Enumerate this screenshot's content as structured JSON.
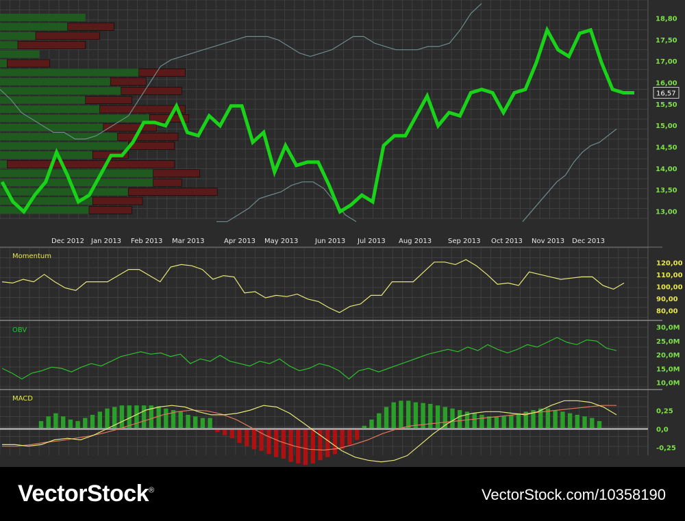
{
  "footer": {
    "brand": "VectorStock",
    "brand_mark": "®",
    "image_ref": "VectorStock.com/10358190"
  },
  "colors": {
    "background": "#2b2b2b",
    "grid": "#3f3f3f",
    "price_line": "#19d219",
    "band_line": "#6e8c8c",
    "price_axis": "#7ee04a",
    "momentum_line": "#e8e87a",
    "momentum_axis": "#e8e84a",
    "obv_line": "#2ec02e",
    "macd_pos": "#2aa02a",
    "macd_neg": "#b01010",
    "macd_line": "#e8e87a",
    "signal_line": "#e07a5a",
    "volume_up": "#1f5a1f",
    "volume_down": "#5a1a1a"
  },
  "chart_data": [
    {
      "type": "line",
      "panel": "price",
      "title": "",
      "x_labels": [
        "Dec 2012",
        "Jan 2013",
        "Feb 2013",
        "Mar 2013",
        "Apr 2013",
        "May 2013",
        "Jun 2013",
        "Jul 2013",
        "Aug 2013",
        "Sep 2013",
        "Oct 2013",
        "Nov 2013",
        "Dec 2013"
      ],
      "y_ticks": [
        "18,80",
        "17,50",
        "17,00",
        "16,00",
        "15,50",
        "15,00",
        "14,50",
        "14,00",
        "13,50",
        "13,00"
      ],
      "ylim": [
        12.8,
        19.1
      ],
      "current_value_label": "16,57",
      "series": [
        {
          "values": [
            13.8,
            13.2,
            12.9,
            13.4,
            13.8,
            14.7,
            14.0,
            13.2,
            13.4,
            14.0,
            14.6,
            14.6,
            15.0,
            15.6,
            15.6,
            15.5,
            16.1,
            15.3,
            15.2,
            15.8,
            15.5,
            16.1,
            16.1,
            15.0,
            15.3,
            14.1,
            14.9,
            14.3,
            14.4,
            14.4,
            13.7,
            12.9,
            13.1,
            13.4,
            13.2,
            14.9,
            15.2,
            15.2,
            15.8,
            16.4,
            15.5,
            15.9,
            15.8,
            16.5,
            16.6,
            16.5,
            15.9,
            16.5,
            16.6,
            17.4,
            18.4,
            17.8,
            17.6,
            18.3,
            18.4,
            17.4,
            16.6,
            16.5,
            16.5
          ]
        },
        {
          "values": [
            16.6,
            16.3,
            15.9,
            15.7,
            15.5,
            15.3,
            15.3,
            15.1,
            15.1,
            15.2,
            15.4,
            15.6,
            15.8,
            16.3,
            16.8,
            17.3,
            17.5,
            17.6,
            17.7,
            17.8,
            17.9,
            18.0,
            18.1,
            18.2,
            18.2,
            18.2,
            18.1,
            17.9,
            17.7,
            17.6,
            17.7,
            17.8,
            18.0,
            18.2,
            18.2,
            18.0,
            17.9,
            17.8,
            17.8,
            17.8,
            17.9,
            17.9,
            18.0,
            18.4,
            18.9,
            19.2
          ]
        },
        {
          "values": [
            12.6,
            12.6,
            12.8,
            13.0,
            13.3,
            13.4,
            13.5,
            13.7,
            13.8,
            13.8,
            13.6,
            13.2,
            12.8,
            12.6
          ]
        },
        {
          "values": [
            12.6,
            12.9,
            13.2,
            13.5,
            13.8,
            14.0,
            14.4,
            14.7,
            14.9,
            15.0,
            15.2,
            15.4
          ]
        }
      ],
      "volume_profile": [
        {
          "up": 2.4,
          "down": 0.0
        },
        {
          "up": 1.9,
          "down": 1.3
        },
        {
          "up": 1.0,
          "down": 1.8
        },
        {
          "up": 0.5,
          "down": 1.9
        },
        {
          "up": 1.1,
          "down": 0.0
        },
        {
          "up": 0.2,
          "down": 1.2
        },
        {
          "up": 3.9,
          "down": 1.3
        },
        {
          "up": 3.1,
          "down": 1.0
        },
        {
          "up": 3.4,
          "down": 1.7
        },
        {
          "up": 2.4,
          "down": 1.3
        },
        {
          "up": 2.8,
          "down": 2.4
        },
        {
          "up": 4.2,
          "down": 1.1
        },
        {
          "up": 2.9,
          "down": 1.5
        },
        {
          "up": 3.3,
          "down": 1.7
        },
        {
          "up": 3.6,
          "down": 1.3
        },
        {
          "up": 2.6,
          "down": 1.0
        },
        {
          "up": 0.2,
          "down": 4.7
        },
        {
          "up": 4.3,
          "down": 1.3
        },
        {
          "up": 4.3,
          "down": 0.8
        },
        {
          "up": 3.6,
          "down": 2.5
        },
        {
          "up": 2.6,
          "down": 1.4
        },
        {
          "up": 2.5,
          "down": 1.2
        }
      ]
    },
    {
      "type": "line",
      "panel": "momentum",
      "title": "Momentum",
      "y_ticks": [
        "120,00",
        "110,00",
        "100,00",
        "90,00",
        "80,00"
      ],
      "ylim": [
        76,
        126
      ],
      "series": [
        {
          "values": [
            104,
            103,
            106,
            104,
            110,
            104,
            99,
            97,
            104,
            104,
            104,
            109,
            114,
            114,
            109,
            104,
            116,
            118,
            117,
            114,
            106,
            109,
            108,
            95,
            96,
            91,
            93,
            92,
            94,
            90,
            88,
            83,
            79,
            84,
            86,
            93,
            93,
            104,
            104,
            104,
            112,
            120,
            120,
            118,
            122,
            117,
            110,
            102,
            103,
            101,
            112,
            110,
            108,
            106,
            107,
            108,
            108,
            101,
            98,
            103
          ]
        }
      ]
    },
    {
      "type": "line",
      "panel": "obv",
      "title": "OBV",
      "y_ticks": [
        "30,0M",
        "25,0M",
        "20,0M",
        "15,0M",
        "10,0M"
      ],
      "ylim": [
        6.5,
        32.5
      ],
      "series": [
        {
          "values": [
            14.0,
            12.0,
            9.5,
            12.0,
            13.0,
            14.5,
            14.0,
            12.5,
            14.5,
            16.0,
            15.0,
            17.0,
            19.0,
            20.0,
            21.0,
            20.0,
            20.5,
            19.0,
            20.0,
            16.0,
            18.0,
            17.0,
            19.5,
            17.0,
            16.0,
            15.0,
            17.0,
            16.0,
            18.0,
            15.0,
            13.0,
            14.0,
            16.0,
            15.0,
            13.0,
            9.5,
            13.0,
            14.0,
            12.5,
            14.0,
            15.5,
            17.0,
            18.5,
            20.0,
            21.0,
            22.0,
            21.0,
            23.0,
            21.5,
            24.0,
            22.0,
            20.5,
            22.0,
            24.0,
            23.0,
            25.0,
            27.0,
            25.0,
            24.0,
            26.0,
            25.5,
            22.5,
            21.5
          ]
        }
      ]
    },
    {
      "type": "bar",
      "panel": "macd",
      "title": "MACD",
      "y_ticks": [
        "0,25",
        "0,0",
        "-0,25"
      ],
      "ylim": [
        -0.45,
        0.45
      ],
      "histogram": [
        0.1,
        0.16,
        0.2,
        0.16,
        0.12,
        0.1,
        0.14,
        0.18,
        0.22,
        0.26,
        0.28,
        0.3,
        0.3,
        0.3,
        0.3,
        0.3,
        0.29,
        0.26,
        0.24,
        0.22,
        0.18,
        0.16,
        0.14,
        0.14,
        -0.04,
        -0.08,
        -0.12,
        -0.18,
        -0.22,
        -0.26,
        -0.28,
        -0.32,
        -0.36,
        -0.38,
        -0.42,
        -0.44,
        -0.46,
        -0.44,
        -0.4,
        -0.36,
        -0.32,
        -0.26,
        -0.2,
        -0.14,
        0.04,
        0.12,
        0.2,
        0.28,
        0.34,
        0.36,
        0.36,
        0.34,
        0.33,
        0.32,
        0.3,
        0.28,
        0.26,
        0.24,
        0.22,
        0.2,
        0.18,
        0.16,
        0.16,
        0.16,
        0.18,
        0.2,
        0.22,
        0.24,
        0.26,
        0.26,
        0.24,
        0.22,
        0.2,
        0.18,
        0.16,
        0.14,
        0.1
      ],
      "series": [
        {
          "values": [
            -0.2,
            -0.2,
            -0.22,
            -0.2,
            -0.14,
            -0.12,
            -0.14,
            -0.08,
            0.0,
            0.08,
            0.16,
            0.24,
            0.28,
            0.3,
            0.28,
            0.22,
            0.18,
            0.18,
            0.2,
            0.24,
            0.3,
            0.28,
            0.2,
            0.08,
            -0.04,
            -0.16,
            -0.28,
            -0.36,
            -0.4,
            -0.42,
            -0.4,
            -0.34,
            -0.2,
            -0.06,
            0.06,
            0.16,
            0.2,
            0.22,
            0.22,
            0.2,
            0.18,
            0.22,
            0.3,
            0.36,
            0.36,
            0.34,
            0.28,
            0.18
          ]
        },
        {
          "values": [
            -0.22,
            -0.22,
            -0.2,
            -0.17,
            -0.15,
            -0.12,
            -0.09,
            -0.05,
            0.0,
            0.06,
            0.12,
            0.18,
            0.22,
            0.24,
            0.23,
            0.19,
            0.12,
            0.02,
            -0.08,
            -0.16,
            -0.22,
            -0.26,
            -0.27,
            -0.25,
            -0.2,
            -0.14,
            -0.06,
            0.0,
            0.04,
            0.06,
            0.08,
            0.1,
            0.12,
            0.14,
            0.16,
            0.18,
            0.2,
            0.22,
            0.24,
            0.26,
            0.28,
            0.3,
            0.3
          ]
        }
      ]
    }
  ]
}
